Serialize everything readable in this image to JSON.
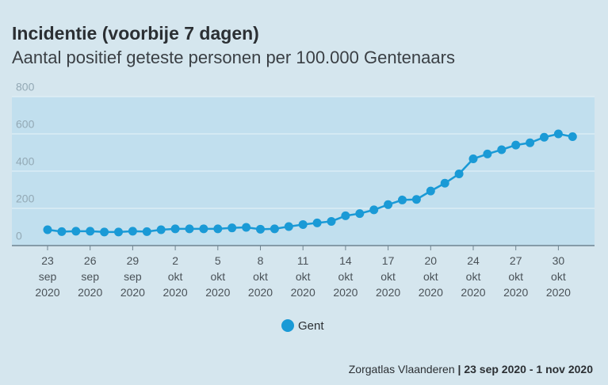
{
  "chart_data": {
    "type": "line",
    "title": "Incidentie (voorbije 7 dagen)",
    "subtitle": "Aantal positief geteste personen per 100.000 Gentenaars",
    "categories": [
      "23 sep 2020",
      null,
      null,
      "26 sep 2020",
      null,
      null,
      "29 sep 2020",
      null,
      null,
      "2 okt 2020",
      null,
      null,
      "5 okt 2020",
      null,
      null,
      "8 okt 2020",
      null,
      null,
      "11 okt 2020",
      null,
      null,
      "14 okt 2020",
      null,
      null,
      "17 okt 2020",
      null,
      null,
      "20 okt 2020",
      null,
      null,
      "24 okt 2020",
      null,
      null,
      "27 okt 2020",
      null,
      null,
      "30 okt 2020",
      null
    ],
    "series": [
      {
        "name": "Gent",
        "color": "#1a9ad6",
        "values": [
          85,
          75,
          77,
          77,
          73,
          73,
          77,
          75,
          85,
          90,
          90,
          90,
          90,
          95,
          98,
          88,
          90,
          102,
          113,
          122,
          130,
          160,
          172,
          192,
          220,
          245,
          248,
          293,
          335,
          385,
          466,
          492,
          515,
          540,
          552,
          582,
          600,
          585
        ]
      }
    ],
    "ylim": [
      0,
      800
    ],
    "yticks": [
      0,
      200,
      400,
      600,
      800
    ],
    "grid": true,
    "footer": {
      "source": "Zorgatlas Vlaanderen",
      "separator": "|",
      "range": "23 sep 2020 - 1 nov 2020"
    }
  }
}
